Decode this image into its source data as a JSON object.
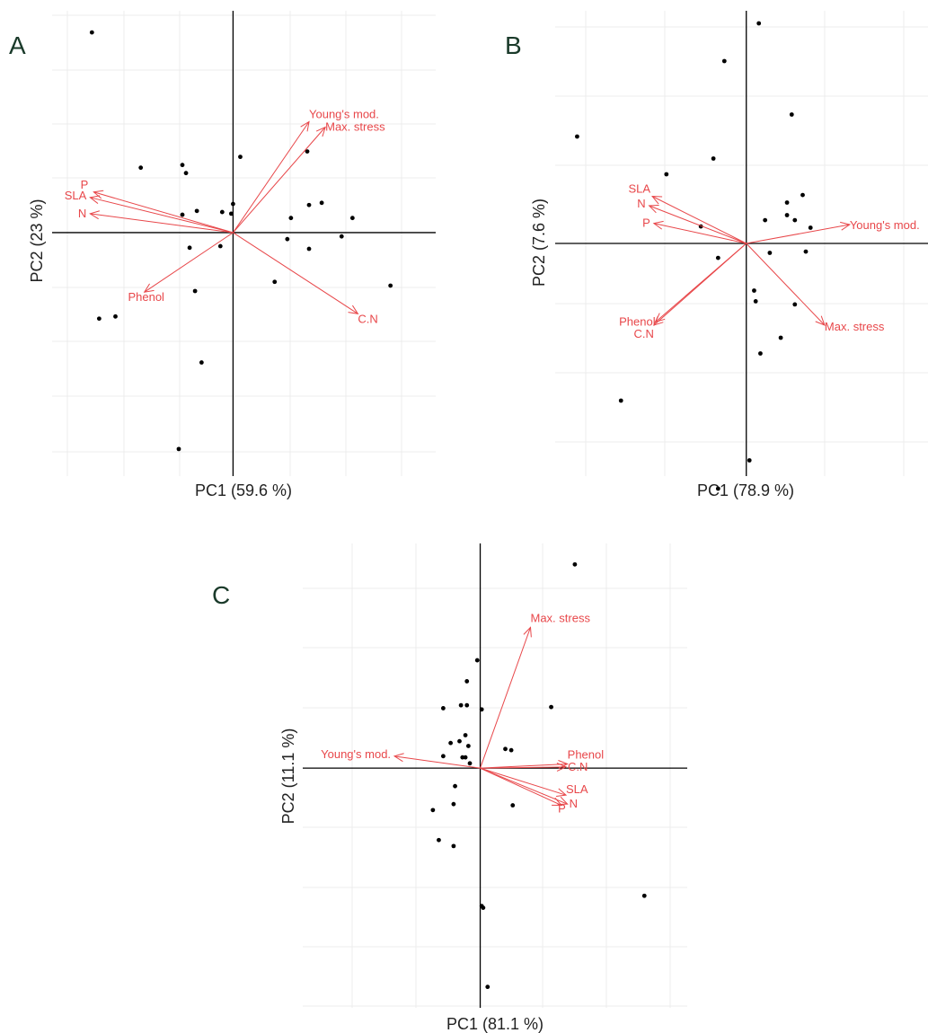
{
  "chart_data": [
    {
      "type": "scatter",
      "panel_label": "A",
      "xlabel": "PC1 (59.6 %)",
      "ylabel": "PC2 (23 %)",
      "xlim": [
        -5,
        5.6
      ],
      "ylim": [
        -4.5,
        4.1
      ],
      "grid": true,
      "points": [
        [
          -3.9,
          3.7
        ],
        [
          -2.55,
          1.2
        ],
        [
          -1.4,
          1.25
        ],
        [
          -1.3,
          1.1
        ],
        [
          0.2,
          1.4
        ],
        [
          2.05,
          1.5
        ],
        [
          -1.4,
          0.33
        ],
        [
          -1.0,
          0.4
        ],
        [
          -0.3,
          0.38
        ],
        [
          0.0,
          0.53
        ],
        [
          -0.05,
          0.35
        ],
        [
          2.1,
          0.51
        ],
        [
          2.45,
          0.55
        ],
        [
          1.6,
          0.27
        ],
        [
          3.3,
          0.27
        ],
        [
          -1.2,
          -0.28
        ],
        [
          -0.35,
          -0.25
        ],
        [
          1.5,
          -0.12
        ],
        [
          3.0,
          -0.07
        ],
        [
          2.1,
          -0.3
        ],
        [
          1.15,
          -0.91
        ],
        [
          4.35,
          -0.98
        ],
        [
          -1.05,
          -1.08
        ],
        [
          -3.25,
          -1.55
        ],
        [
          -3.7,
          -1.59
        ],
        [
          -0.87,
          -2.4
        ],
        [
          -1.5,
          -4.0
        ]
      ],
      "vectors": [
        {
          "name": "Young's mod.",
          "x": 2.1,
          "y": 2.05
        },
        {
          "name": "Max. stress",
          "x": 2.55,
          "y": 1.95
        },
        {
          "name": "P",
          "x": -3.85,
          "y": 0.75
        },
        {
          "name": "SLA",
          "x": -3.95,
          "y": 0.65
        },
        {
          "name": "N",
          "x": -3.95,
          "y": 0.35
        },
        {
          "name": "Phenol",
          "x": -2.45,
          "y": -1.1
        },
        {
          "name": "C.N",
          "x": 3.45,
          "y": -1.5
        }
      ]
    },
    {
      "type": "scatter",
      "panel_label": "B",
      "xlabel": "PC1 (78.9 %)",
      "ylabel": "PC2 (7.6 %)",
      "xlim": [
        -6.1,
        5.8
      ],
      "ylim": [
        -3.7,
        3.7
      ],
      "grid": true,
      "points": [
        [
          0.4,
          3.5
        ],
        [
          -0.7,
          2.9
        ],
        [
          1.45,
          2.05
        ],
        [
          -5.4,
          1.7
        ],
        [
          -1.05,
          1.35
        ],
        [
          -2.55,
          1.1
        ],
        [
          1.8,
          0.77
        ],
        [
          1.3,
          0.65
        ],
        [
          1.3,
          0.45
        ],
        [
          1.55,
          0.37
        ],
        [
          0.6,
          0.37
        ],
        [
          -1.45,
          0.27
        ],
        [
          2.05,
          0.25
        ],
        [
          0.75,
          -0.15
        ],
        [
          -0.9,
          -0.23
        ],
        [
          1.9,
          -0.13
        ],
        [
          0.25,
          -0.75
        ],
        [
          0.3,
          -0.92
        ],
        [
          1.55,
          -0.97
        ],
        [
          1.1,
          -1.5
        ],
        [
          0.45,
          -1.75
        ],
        [
          -4.0,
          -2.5
        ],
        [
          0.1,
          -3.45
        ],
        [
          -0.9,
          -3.9
        ]
      ],
      "vectors": [
        {
          "name": "Young's mod.",
          "x": 3.3,
          "y": 0.3
        },
        {
          "name": "Max. stress",
          "x": 2.5,
          "y": -1.3
        },
        {
          "name": "SLA",
          "x": -3.0,
          "y": 0.75
        },
        {
          "name": "N",
          "x": -3.1,
          "y": 0.6
        },
        {
          "name": "P",
          "x": -2.95,
          "y": 0.32
        },
        {
          "name": "Phenol",
          "x": -2.9,
          "y": -1.25
        },
        {
          "name": "C.N",
          "x": -2.95,
          "y": -1.3
        }
      ]
    },
    {
      "type": "scatter",
      "panel_label": "C",
      "xlabel": "PC1 (81.1 %)",
      "ylabel": "PC2 (11.1 %)",
      "xlim": [
        -6,
        7
      ],
      "ylim": [
        -4.0,
        3.75
      ],
      "grid": true,
      "points": [
        [
          3.2,
          3.4
        ],
        [
          -0.1,
          1.8
        ],
        [
          -0.45,
          1.45
        ],
        [
          -1.25,
          1.0
        ],
        [
          -0.65,
          1.05
        ],
        [
          -0.45,
          1.05
        ],
        [
          0.05,
          0.98
        ],
        [
          2.4,
          1.02
        ],
        [
          -0.5,
          0.55
        ],
        [
          -0.7,
          0.45
        ],
        [
          -1.0,
          0.42
        ],
        [
          -0.4,
          0.37
        ],
        [
          0.85,
          0.32
        ],
        [
          1.05,
          0.3
        ],
        [
          -1.25,
          0.2
        ],
        [
          -0.6,
          0.18
        ],
        [
          -0.5,
          0.18
        ],
        [
          -0.35,
          0.08
        ],
        [
          -0.85,
          -0.3
        ],
        [
          -0.9,
          -0.6
        ],
        [
          1.1,
          -0.62
        ],
        [
          -1.6,
          -0.7
        ],
        [
          -1.4,
          -1.2
        ],
        [
          -0.9,
          -1.3
        ],
        [
          0.05,
          -2.3
        ],
        [
          0.1,
          -2.33
        ],
        [
          5.55,
          -2.13
        ],
        [
          0.25,
          -3.65
        ]
      ],
      "vectors": [
        {
          "name": "Max. stress",
          "x": 1.7,
          "y": 2.35
        },
        {
          "name": "Young's mod.",
          "x": -2.9,
          "y": 0.2
        },
        {
          "name": "Phenol",
          "x": 2.95,
          "y": 0.07
        },
        {
          "name": "C.N",
          "x": 2.9,
          "y": 0.02
        },
        {
          "name": "SLA",
          "x": 2.9,
          "y": -0.45
        },
        {
          "name": "N",
          "x": 2.95,
          "y": -0.6
        },
        {
          "name": "P",
          "x": 2.75,
          "y": -0.62
        }
      ]
    }
  ],
  "colors": {
    "vector": "#e8474a",
    "point": "#000000",
    "panel_label": "#1a3a2a"
  }
}
